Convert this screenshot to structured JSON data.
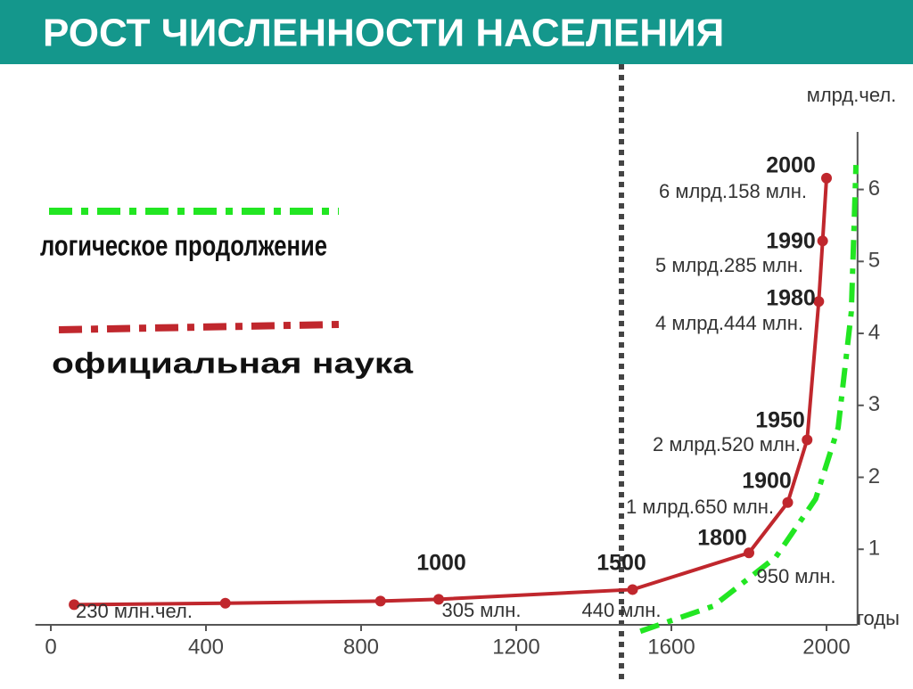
{
  "chart_data": {
    "type": "line",
    "title": "РОСТ  ЧИСЛЕННОСТИ НАСЕЛЕНИЯ",
    "ylabel": "млрд.чел.",
    "xlabel": "годы",
    "xlim": [
      -40,
      2080
    ],
    "ylim": [
      -0.05,
      6.8
    ],
    "xticks": [
      0,
      400,
      800,
      1200,
      1600,
      2000
    ],
    "yticks": [
      1,
      2,
      3,
      4,
      5,
      6
    ],
    "series": [
      {
        "name": "официальная наука",
        "color": "#c0272d",
        "x": [
          60,
          450,
          850,
          1000,
          1500,
          1800,
          1900,
          1950,
          1980,
          1990,
          2000
        ],
        "values": [
          0.23,
          0.25,
          0.28,
          0.305,
          0.44,
          0.95,
          1.65,
          2.52,
          4.444,
          5.285,
          6.158
        ],
        "value_labels": [
          "230 млн.чел.",
          null,
          null,
          "305 млн.",
          "440 млн.",
          "950 млн.",
          "1 млрд.650 млн.",
          "2 млрд.520 млн.",
          "4 млрд.444 млн.",
          "5 млрд.285 млн.",
          "6 млрд.158 млн."
        ],
        "year_labels": [
          null,
          null,
          null,
          1000,
          1500,
          1800,
          1900,
          1950,
          1980,
          1990,
          2000
        ]
      },
      {
        "name": "логическое продолжение",
        "color": "#22e622",
        "x": [
          1520,
          1708,
          1869,
          1972,
          2030,
          2064,
          2076
        ],
        "values": [
          -0.14,
          0.21,
          0.89,
          1.7,
          2.69,
          4.3,
          6.34
        ]
      }
    ]
  }
}
